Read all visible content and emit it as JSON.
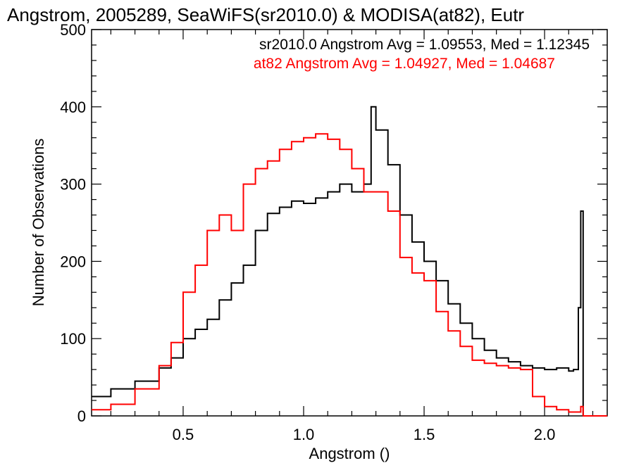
{
  "chart_data": {
    "type": "line",
    "title": "Angstrom, 2005289, SeaWiFS(sr2010.0) & MODISA(at82), Eutr",
    "xlabel": "Angstrom ()",
    "ylabel": "Number of Observations",
    "xlim": [
      0.12,
      2.26
    ],
    "ylim": [
      0,
      500
    ],
    "x_ticks": [
      0.5,
      1.0,
      1.5,
      2.0
    ],
    "x_tick_labels": [
      "0.5",
      "1.0",
      "1.5",
      "2.0"
    ],
    "y_ticks": [
      0,
      100,
      200,
      300,
      400,
      500
    ],
    "y_tick_labels": [
      "0",
      "100",
      "200",
      "300",
      "400",
      "500"
    ],
    "grid": false,
    "legend_position": "top-right",
    "annotations": [
      {
        "text": "sr2010.0 Angstrom Avg = 1.09553, Med = 1.12345",
        "color": "#000000"
      },
      {
        "text": "at82 Angstrom Avg = 1.04927, Med = 1.04687",
        "color": "#ff0000"
      }
    ],
    "series": [
      {
        "color": "#000000",
        "x": [
          0.12,
          0.2,
          0.3,
          0.4,
          0.45,
          0.5,
          0.55,
          0.6,
          0.65,
          0.7,
          0.75,
          0.8,
          0.85,
          0.9,
          0.95,
          1.0,
          1.05,
          1.1,
          1.15,
          1.2,
          1.25,
          1.28,
          1.3,
          1.35,
          1.4,
          1.45,
          1.5,
          1.55,
          1.6,
          1.65,
          1.7,
          1.75,
          1.8,
          1.85,
          1.9,
          1.95,
          2.0,
          2.05,
          2.1,
          2.12,
          2.14,
          2.15,
          2.16,
          2.2,
          2.26
        ],
        "y": [
          25,
          35,
          45,
          62,
          75,
          100,
          112,
          125,
          150,
          172,
          195,
          240,
          262,
          270,
          278,
          275,
          282,
          290,
          300,
          290,
          300,
          400,
          370,
          325,
          260,
          225,
          200,
          175,
          145,
          120,
          100,
          85,
          75,
          70,
          65,
          62,
          60,
          62,
          58,
          60,
          140,
          265,
          0,
          0,
          0
        ]
      },
      {
        "color": "#ff0000",
        "x": [
          0.12,
          0.2,
          0.3,
          0.4,
          0.45,
          0.5,
          0.55,
          0.6,
          0.65,
          0.7,
          0.75,
          0.8,
          0.85,
          0.9,
          0.95,
          1.0,
          1.05,
          1.1,
          1.15,
          1.2,
          1.25,
          1.3,
          1.35,
          1.4,
          1.45,
          1.5,
          1.55,
          1.6,
          1.65,
          1.7,
          1.75,
          1.8,
          1.85,
          1.9,
          1.95,
          2.0,
          2.05,
          2.1,
          2.15,
          2.16,
          2.2,
          2.26
        ],
        "y": [
          8,
          15,
          35,
          65,
          95,
          160,
          195,
          240,
          260,
          240,
          300,
          320,
          330,
          345,
          355,
          360,
          365,
          358,
          345,
          320,
          290,
          290,
          265,
          205,
          185,
          175,
          135,
          110,
          90,
          72,
          68,
          65,
          62,
          60,
          25,
          12,
          8,
          5,
          12,
          0,
          0,
          0
        ]
      }
    ]
  }
}
